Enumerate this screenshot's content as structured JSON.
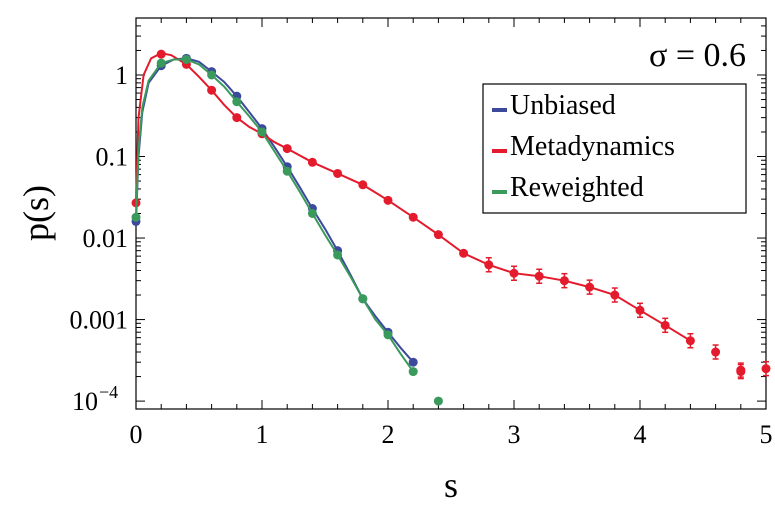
{
  "chart_data": {
    "type": "scatter",
    "xlabel": "s",
    "ylabel": "p(s)",
    "annotation": "σ = 0.6",
    "xlim": [
      0,
      5
    ],
    "ylim": [
      8e-05,
      5
    ],
    "yscale": "log",
    "grid": false,
    "legend_position": "top-right",
    "x_ticks": [
      {
        "value": 0,
        "label": "0"
      },
      {
        "value": 1,
        "label": "1"
      },
      {
        "value": 2,
        "label": "2"
      },
      {
        "value": 3,
        "label": "3"
      },
      {
        "value": 4,
        "label": "4"
      },
      {
        "value": 5,
        "label": "5"
      }
    ],
    "y_ticks": [
      {
        "value": 1,
        "label": "1"
      },
      {
        "value": 0.1,
        "label": "0.1"
      },
      {
        "value": 0.01,
        "label": "0.01"
      },
      {
        "value": 0.001,
        "label": "0.001"
      }
    ],
    "y_tick_special": {
      "value": 0.0001,
      "base": "10",
      "exp": "−4"
    },
    "series": [
      {
        "name": "Unbiased",
        "color": "#3d4a9c",
        "points": [
          [
            0.0,
            0.016
          ],
          [
            0.2,
            1.3
          ],
          [
            0.4,
            1.6
          ],
          [
            0.6,
            1.1
          ],
          [
            0.8,
            0.55
          ],
          [
            1.0,
            0.22
          ],
          [
            1.2,
            0.075
          ],
          [
            1.4,
            0.023
          ],
          [
            1.6,
            0.007
          ],
          [
            1.8,
            0.0018
          ],
          [
            2.0,
            0.0007
          ],
          [
            2.2,
            0.0003
          ]
        ],
        "curve": [
          [
            0.0,
            0.016
          ],
          [
            0.02,
            0.1
          ],
          [
            0.05,
            0.35
          ],
          [
            0.1,
            0.8
          ],
          [
            0.2,
            1.3
          ],
          [
            0.3,
            1.55
          ],
          [
            0.4,
            1.6
          ],
          [
            0.5,
            1.45
          ],
          [
            0.6,
            1.1
          ],
          [
            0.7,
            0.82
          ],
          [
            0.8,
            0.55
          ],
          [
            0.9,
            0.35
          ],
          [
            1.0,
            0.22
          ],
          [
            1.1,
            0.13
          ],
          [
            1.2,
            0.075
          ],
          [
            1.3,
            0.042
          ],
          [
            1.4,
            0.023
          ],
          [
            1.5,
            0.013
          ],
          [
            1.6,
            0.007
          ],
          [
            1.7,
            0.0036
          ],
          [
            1.8,
            0.0018
          ],
          [
            1.9,
            0.0011
          ],
          [
            2.0,
            0.0007
          ],
          [
            2.1,
            0.00045
          ],
          [
            2.2,
            0.0003
          ]
        ]
      },
      {
        "name": "Metadynamics",
        "color": "#e41b2c",
        "points": [
          [
            0.0,
            0.027
          ],
          [
            0.2,
            1.8
          ],
          [
            0.4,
            1.35
          ],
          [
            0.6,
            0.65
          ],
          [
            0.8,
            0.3
          ],
          [
            1.0,
            0.19
          ],
          [
            1.2,
            0.125
          ],
          [
            1.4,
            0.085
          ],
          [
            1.6,
            0.062
          ],
          [
            1.8,
            0.045
          ],
          [
            2.0,
            0.029
          ],
          [
            2.2,
            0.018
          ],
          [
            2.4,
            0.011
          ],
          [
            2.6,
            0.0065
          ],
          [
            2.8,
            0.0047
          ],
          [
            3.0,
            0.0037
          ],
          [
            3.2,
            0.0034
          ],
          [
            3.4,
            0.003
          ],
          [
            3.6,
            0.0025
          ],
          [
            3.8,
            0.002
          ],
          [
            4.0,
            0.0013
          ],
          [
            4.2,
            0.00085
          ],
          [
            4.4,
            0.00055
          ],
          [
            4.6,
            0.0004
          ],
          [
            4.8,
            0.00024
          ],
          [
            5.0,
            0.00025
          ],
          [
            4.8,
            0.00023
          ]
        ],
        "curve": [
          [
            0.0,
            0.027
          ],
          [
            0.02,
            0.3
          ],
          [
            0.06,
            1.0
          ],
          [
            0.12,
            1.6
          ],
          [
            0.2,
            1.85
          ],
          [
            0.28,
            1.75
          ],
          [
            0.4,
            1.35
          ],
          [
            0.5,
            0.95
          ],
          [
            0.6,
            0.65
          ],
          [
            0.7,
            0.43
          ],
          [
            0.8,
            0.3
          ],
          [
            0.9,
            0.23
          ],
          [
            1.0,
            0.19
          ],
          [
            1.1,
            0.15
          ],
          [
            1.2,
            0.125
          ],
          [
            1.4,
            0.085
          ],
          [
            1.6,
            0.062
          ],
          [
            1.8,
            0.045
          ],
          [
            2.0,
            0.029
          ],
          [
            2.2,
            0.018
          ],
          [
            2.4,
            0.011
          ],
          [
            2.6,
            0.0065
          ],
          [
            2.8,
            0.0047
          ],
          [
            3.0,
            0.0037
          ],
          [
            3.2,
            0.0034
          ],
          [
            3.4,
            0.003
          ],
          [
            3.6,
            0.0025
          ],
          [
            3.8,
            0.002
          ],
          [
            4.0,
            0.0013
          ],
          [
            4.2,
            0.00085
          ],
          [
            4.4,
            0.00055
          ]
        ]
      },
      {
        "name": "Reweighted",
        "color": "#3a9a5b",
        "points": [
          [
            0.0,
            0.018
          ],
          [
            0.2,
            1.4
          ],
          [
            0.4,
            1.55
          ],
          [
            0.6,
            1.0
          ],
          [
            0.8,
            0.47
          ],
          [
            1.0,
            0.2
          ],
          [
            1.2,
            0.066
          ],
          [
            1.4,
            0.02
          ],
          [
            1.6,
            0.0062
          ],
          [
            1.8,
            0.0018
          ],
          [
            2.0,
            0.00065
          ],
          [
            2.2,
            0.00023
          ],
          [
            2.4,
            0.0001
          ]
        ],
        "curve": [
          [
            0.0,
            0.018
          ],
          [
            0.02,
            0.12
          ],
          [
            0.05,
            0.4
          ],
          [
            0.1,
            0.85
          ],
          [
            0.2,
            1.4
          ],
          [
            0.3,
            1.55
          ],
          [
            0.4,
            1.55
          ],
          [
            0.5,
            1.35
          ],
          [
            0.6,
            1.0
          ],
          [
            0.7,
            0.72
          ],
          [
            0.8,
            0.47
          ],
          [
            0.9,
            0.31
          ],
          [
            1.0,
            0.2
          ],
          [
            1.1,
            0.115
          ],
          [
            1.2,
            0.066
          ],
          [
            1.3,
            0.037
          ],
          [
            1.4,
            0.02
          ],
          [
            1.5,
            0.011
          ],
          [
            1.6,
            0.0062
          ],
          [
            1.7,
            0.0034
          ],
          [
            1.8,
            0.0018
          ],
          [
            1.9,
            0.001
          ],
          [
            2.0,
            0.00065
          ],
          [
            2.1,
            0.00038
          ],
          [
            2.2,
            0.00023
          ]
        ]
      }
    ]
  }
}
